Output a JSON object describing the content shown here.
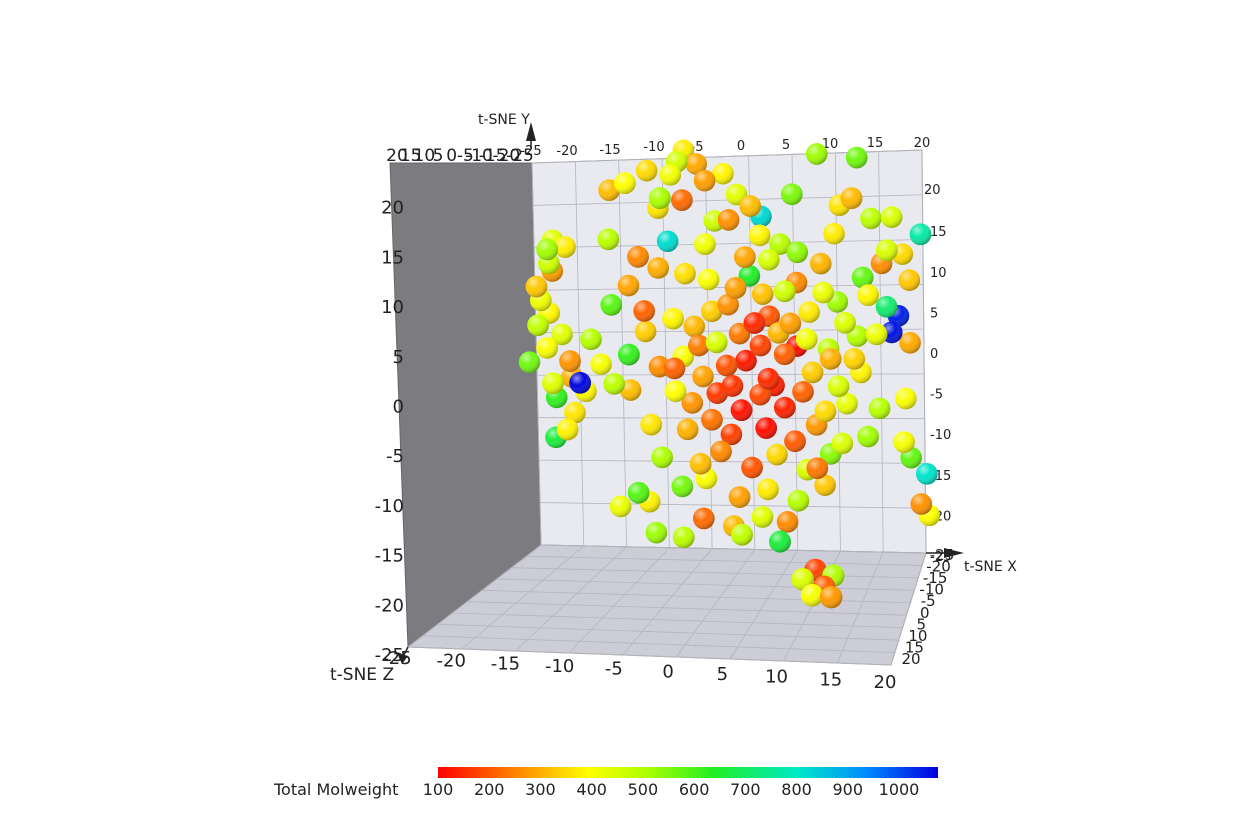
{
  "chart_data": {
    "type": "scatter3d",
    "title": "",
    "axes": {
      "x": {
        "label": "t-SNE X",
        "ticks": [
          "-25",
          "-20",
          "-15",
          "-10",
          "-5",
          "0",
          "5",
          "10",
          "15",
          "20"
        ],
        "range": [
          -25,
          20
        ]
      },
      "y": {
        "label": "t-SNE Y",
        "ticks": [
          "-25",
          "-20",
          "-15",
          "-10",
          "-5",
          "0",
          "5",
          "10",
          "15",
          "20"
        ],
        "range": [
          -25,
          20
        ]
      },
      "z": {
        "label": "t-SNE Z",
        "ticks": [
          "-25",
          "-20",
          "-15",
          "-10",
          "-5",
          "0",
          "5",
          "10",
          "15",
          "20"
        ],
        "range": [
          -25,
          20
        ]
      }
    },
    "colorbar": {
      "label": "Total Molweight",
      "ticks": [
        "100",
        "200",
        "300",
        "400",
        "500",
        "600",
        "700",
        "800",
        "900",
        "1000"
      ],
      "range": [
        100,
        1000
      ],
      "colormap": "jet-reversed (red = low, blue = high)"
    },
    "colors": {
      "back_wall": "#e9e9f0",
      "side_wall": "#7b7b80",
      "floor": "#cdcdd8",
      "grid": "#b5b5bf"
    },
    "points": [
      {
        "x": -8.5,
        "y": 20.4,
        "z": -1.6,
        "v": 351
      },
      {
        "x": -7.1,
        "y": 18.9,
        "z": -1.0,
        "v": 280
      },
      {
        "x": -9.6,
        "y": 19.3,
        "z": 0.4,
        "v": 427
      },
      {
        "x": -10.5,
        "y": 17.9,
        "z": 1.4,
        "v": 385
      },
      {
        "x": -13.0,
        "y": 18.2,
        "z": -0.3,
        "v": 332
      },
      {
        "x": -15.9,
        "y": 17.0,
        "z": 2.0,
        "v": 371
      },
      {
        "x": -17.6,
        "y": 16.1,
        "z": 1.1,
        "v": 299
      },
      {
        "x": -12.0,
        "y": 15.4,
        "z": 3.2,
        "v": 478
      },
      {
        "x": -11.4,
        "y": 13.7,
        "z": -2.1,
        "v": 341
      },
      {
        "x": -9.0,
        "y": 14.9,
        "z": 0.5,
        "v": 213
      },
      {
        "x": -4.0,
        "y": 17.8,
        "z": -0.8,
        "v": 359
      },
      {
        "x": -2.7,
        "y": 15.6,
        "z": 1.0,
        "v": 406
      },
      {
        "x": -1.3,
        "y": 14.4,
        "z": 2.3,
        "v": 299
      },
      {
        "x": -3.5,
        "y": 12.6,
        "z": 0.2,
        "v": 252
      },
      {
        "x": 0.6,
        "y": 12.8,
        "z": -1.8,
        "v": 769
      },
      {
        "x": 2.7,
        "y": 9.7,
        "z": -1.0,
        "v": 462
      },
      {
        "x": 11.4,
        "y": 19.8,
        "z": 0.7,
        "v": 529
      },
      {
        "x": 10.4,
        "y": 15.4,
        "z": 3.2,
        "v": 296
      },
      {
        "x": 9.3,
        "y": 14.4,
        "z": 1.3,
        "v": 341
      },
      {
        "x": 13.4,
        "y": 12.6,
        "z": -1.5,
        "v": 457
      },
      {
        "x": 15.6,
        "y": 12.9,
        "z": 0.0,
        "v": 420
      },
      {
        "x": 14.7,
        "y": 9.3,
        "z": 2.1,
        "v": 419
      },
      {
        "x": 16.9,
        "y": 8.6,
        "z": -0.4,
        "v": 330
      },
      {
        "x": 18.7,
        "y": 11.1,
        "z": 1.7,
        "v": 715
      },
      {
        "x": 17.6,
        "y": 5.7,
        "z": 0.4,
        "v": 312
      },
      {
        "x": -10.4,
        "y": 10.0,
        "z": -1.2,
        "v": 764
      },
      {
        "x": -17.6,
        "y": 10.4,
        "z": 0.5,
        "v": 456
      },
      {
        "x": -14.3,
        "y": 8.5,
        "z": 1.6,
        "v": 244
      },
      {
        "x": -11.6,
        "y": 7.0,
        "z": -0.6,
        "v": 283
      },
      {
        "x": -8.7,
        "y": 6.5,
        "z": 0.9,
        "v": 336
      },
      {
        "x": -5.6,
        "y": 5.6,
        "z": -1.3,
        "v": 378
      },
      {
        "x": -3.0,
        "y": 5.0,
        "z": 2.3,
        "v": 268
      },
      {
        "x": -1.1,
        "y": 6.2,
        "z": 0.4,
        "v": 601
      },
      {
        "x": 0.6,
        "y": 4.0,
        "z": -0.5,
        "v": 305
      },
      {
        "x": 2.9,
        "y": 4.5,
        "z": 1.2,
        "v": 431
      },
      {
        "x": 4.6,
        "y": 5.3,
        "z": -0.8,
        "v": 247
      },
      {
        "x": 7.5,
        "y": 4.3,
        "z": 0.6,
        "v": 395
      },
      {
        "x": 9.5,
        "y": 3.0,
        "z": -1.6,
        "v": 488
      },
      {
        "x": 12.6,
        "y": 4.1,
        "z": 1.6,
        "v": 361
      },
      {
        "x": 15.0,
        "y": 2.6,
        "z": 0.0,
        "v": 664
      },
      {
        "x": 16.5,
        "y": 1.5,
        "z": -0.7,
        "v": 969
      },
      {
        "x": 15.4,
        "y": -0.2,
        "z": 1.3,
        "v": 982
      },
      {
        "x": 17.7,
        "y": -1.5,
        "z": 0.3,
        "v": 280
      },
      {
        "x": -13.3,
        "y": 2.1,
        "z": -0.2,
        "v": 206
      },
      {
        "x": -10.2,
        "y": 1.4,
        "z": 1.6,
        "v": 360
      },
      {
        "x": -7.4,
        "y": 0.3,
        "z": -0.5,
        "v": 295
      },
      {
        "x": -5.0,
        "y": -1.4,
        "z": 0.9,
        "v": 420
      },
      {
        "x": -2.0,
        "y": -0.6,
        "z": -1.2,
        "v": 227
      },
      {
        "x": 0.2,
        "y": -1.8,
        "z": 0.4,
        "v": 171
      },
      {
        "x": 2.4,
        "y": -0.4,
        "z": -0.1,
        "v": 294
      },
      {
        "x": 5.5,
        "y": -1.0,
        "z": 1.1,
        "v": 388
      },
      {
        "x": 8.3,
        "y": -2.3,
        "z": -0.5,
        "v": 452
      },
      {
        "x": 11.1,
        "y": -3.3,
        "z": 0.8,
        "v": 323
      },
      {
        "x": -15.4,
        "y": -2.7,
        "z": 1.8,
        "v": 579
      },
      {
        "x": -11.5,
        "y": -4.3,
        "z": -0.3,
        "v": 249
      },
      {
        "x": -8.8,
        "y": -3.1,
        "z": 0.2,
        "v": 376
      },
      {
        "x": -6.3,
        "y": -5.5,
        "z": -1.0,
        "v": 271
      },
      {
        "x": -3.9,
        "y": -4.0,
        "z": 1.4,
        "v": 189
      },
      {
        "x": -1.4,
        "y": -3.6,
        "z": -0.2,
        "v": 128
      },
      {
        "x": 1.1,
        "y": -5.6,
        "z": 0.6,
        "v": 146
      },
      {
        "x": 3.3,
        "y": -3.0,
        "z": -1.4,
        "v": 202
      },
      {
        "x": 6.3,
        "y": -4.9,
        "z": 0.3,
        "v": 315
      },
      {
        "x": 9.2,
        "y": -6.4,
        "z": 1.2,
        "v": 419
      },
      {
        "x": 12.1,
        "y": -5.0,
        "z": -0.6,
        "v": 357
      },
      {
        "x": -21.0,
        "y": -6.0,
        "z": 1.2,
        "v": 994
      },
      {
        "x": -16.9,
        "y": -6.2,
        "z": 0.4,
        "v": 455
      },
      {
        "x": -14.7,
        "y": -7.1,
        "z": -1.4,
        "v": 300
      },
      {
        "x": -9.8,
        "y": -7.0,
        "z": 0.9,
        "v": 370
      },
      {
        "x": -7.6,
        "y": -8.5,
        "z": -0.7,
        "v": 258
      },
      {
        "x": -4.8,
        "y": -7.3,
        "z": 0.1,
        "v": 163
      },
      {
        "x": -2.2,
        "y": -9.1,
        "z": 1.6,
        "v": 121
      },
      {
        "x": 0.4,
        "y": -7.6,
        "z": -1.1,
        "v": 178
      },
      {
        "x": 3.0,
        "y": -8.9,
        "z": 0.7,
        "v": 137
      },
      {
        "x": 5.3,
        "y": -7.2,
        "z": -0.4,
        "v": 204
      },
      {
        "x": 7.7,
        "y": -9.3,
        "z": 1.0,
        "v": 331
      },
      {
        "x": 10.5,
        "y": -8.6,
        "z": -0.8,
        "v": 401
      },
      {
        "x": 14.1,
        "y": -9.0,
        "z": 0.5,
        "v": 462
      },
      {
        "x": 17.5,
        "y": -8.1,
        "z": -1.6,
        "v": 375
      },
      {
        "x": -12.7,
        "y": -10.8,
        "z": 1.2,
        "v": 344
      },
      {
        "x": -8.2,
        "y": -11.5,
        "z": -0.3,
        "v": 287
      },
      {
        "x": -5.5,
        "y": -10.3,
        "z": 0.6,
        "v": 222
      },
      {
        "x": -2.9,
        "y": -12.2,
        "z": -1.5,
        "v": 168
      },
      {
        "x": 0.9,
        "y": -11.3,
        "z": 0.2,
        "v": 116
      },
      {
        "x": 4.1,
        "y": -12.7,
        "z": 1.3,
        "v": 196
      },
      {
        "x": 6.9,
        "y": -11.0,
        "z": -0.5,
        "v": 262
      },
      {
        "x": 9.7,
        "y": -13.0,
        "z": 0.8,
        "v": 420
      },
      {
        "x": 13.0,
        "y": -12.4,
        "z": -1.0,
        "v": 486
      },
      {
        "x": 17.0,
        "y": -12.9,
        "z": 0.3,
        "v": 380
      },
      {
        "x": -11.2,
        "y": -14.7,
        "z": -0.2,
        "v": 474
      },
      {
        "x": -6.9,
        "y": -15.3,
        "z": 1.1,
        "v": 301
      },
      {
        "x": -4.2,
        "y": -14.1,
        "z": -0.9,
        "v": 245
      },
      {
        "x": -0.8,
        "y": -15.8,
        "z": 0.5,
        "v": 190
      },
      {
        "x": 2.4,
        "y": -14.5,
        "z": -1.3,
        "v": 328
      },
      {
        "x": 5.6,
        "y": -16.0,
        "z": 0.9,
        "v": 418
      },
      {
        "x": 8.5,
        "y": -14.3,
        "z": -0.2,
        "v": 507
      },
      {
        "x": 19.6,
        "y": -16.5,
        "z": 0.7,
        "v": 754
      },
      {
        "x": 18.0,
        "y": -14.8,
        "z": -0.8,
        "v": 541
      },
      {
        "x": -8.9,
        "y": -18.0,
        "z": 0.2,
        "v": 525
      },
      {
        "x": -5.9,
        "y": -17.2,
        "z": -1.0,
        "v": 376
      },
      {
        "x": -2.4,
        "y": -19.1,
        "z": 1.4,
        "v": 269
      },
      {
        "x": 1.2,
        "y": -18.4,
        "z": -0.4,
        "v": 349
      },
      {
        "x": 4.6,
        "y": -19.6,
        "z": 0.6,
        "v": 466
      },
      {
        "x": 8.0,
        "y": -18.0,
        "z": -1.2,
        "v": 312
      },
      {
        "x": 19.0,
        "y": -20.0,
        "z": 0.4,
        "v": 253
      },
      {
        "x": 20.1,
        "y": -21.4,
        "z": -0.6,
        "v": 372
      },
      {
        "x": -6.5,
        "y": -21.6,
        "z": 0.9,
        "v": 212
      },
      {
        "x": -2.8,
        "y": -22.6,
        "z": -0.3,
        "v": 297
      },
      {
        "x": 0.3,
        "y": -21.4,
        "z": 1.2,
        "v": 411
      },
      {
        "x": 3.6,
        "y": -22.2,
        "z": -1.1,
        "v": 246
      },
      {
        "x": -8.8,
        "y": -23.8,
        "z": 0.6,
        "v": 456
      },
      {
        "x": -11.8,
        "y": -23.4,
        "z": -0.7,
        "v": 491
      },
      {
        "x": -16.1,
        "y": -20.3,
        "z": 0.1,
        "v": 396
      },
      {
        "x": -14.2,
        "y": -18.6,
        "z": 1.4,
        "v": 551
      },
      {
        "x": -12.5,
        "y": -19.9,
        "z": -1.2,
        "v": 355
      },
      {
        "x": 2.0,
        "y": -24.0,
        "z": 3.5,
        "v": 620
      },
      {
        "x": -2.6,
        "y": -23.1,
        "z": 4.5,
        "v": 449
      },
      {
        "x": -25.0,
        "y": 9.4,
        "z": 2.1,
        "v": 484
      },
      {
        "x": -24.0,
        "y": 10.2,
        "z": -0.3,
        "v": 404
      },
      {
        "x": -22.8,
        "y": 9.6,
        "z": 1.4,
        "v": 351
      },
      {
        "x": -24.5,
        "y": 7.6,
        "z": 0.2,
        "v": 433
      },
      {
        "x": -23.9,
        "y": 6.6,
        "z": -1.1,
        "v": 265
      },
      {
        "x": -26.2,
        "y": 5.1,
        "z": 1.8,
        "v": 311
      },
      {
        "x": -25.5,
        "y": 3.4,
        "z": 0.6,
        "v": 391
      },
      {
        "x": -24.3,
        "y": 1.8,
        "z": -0.8,
        "v": 362
      },
      {
        "x": -25.9,
        "y": 0.6,
        "z": 1.1,
        "v": 447
      },
      {
        "x": -22.9,
        "y": -0.6,
        "z": -0.3,
        "v": 412
      },
      {
        "x": -24.7,
        "y": -2.1,
        "z": 0.2,
        "v": 376
      },
      {
        "x": -22.2,
        "y": -3.5,
        "z": 1.3,
        "v": 258
      },
      {
        "x": -26.5,
        "y": -3.9,
        "z": -1.5,
        "v": 528
      },
      {
        "x": -24.1,
        "y": -6.1,
        "z": 0.7,
        "v": 412
      },
      {
        "x": -21.7,
        "y": -5.5,
        "z": -0.4,
        "v": 289
      },
      {
        "x": -20.3,
        "y": -7.0,
        "z": 1.0,
        "v": 363
      },
      {
        "x": -23.4,
        "y": -7.9,
        "z": -1.0,
        "v": 581
      },
      {
        "x": -21.5,
        "y": -9.5,
        "z": 0.5,
        "v": 342
      },
      {
        "x": -23.6,
        "y": -12.4,
        "z": -0.2,
        "v": 620
      },
      {
        "x": -22.4,
        "y": -11.4,
        "z": 0.8,
        "v": 357
      },
      {
        "x": 5.0,
        "y": -26.5,
        "z": 10.8,
        "v": 172
      },
      {
        "x": 3.4,
        "y": -27.5,
        "z": 11.5,
        "v": 416
      },
      {
        "x": 5.8,
        "y": -28.3,
        "z": 12.2,
        "v": 201
      },
      {
        "x": 7.0,
        "y": -27.1,
        "z": 11.4,
        "v": 472
      },
      {
        "x": 4.3,
        "y": -29.2,
        "z": 12.8,
        "v": 380
      },
      {
        "x": 6.5,
        "y": -29.4,
        "z": 13.0,
        "v": 262
      },
      {
        "x": -5.3,
        "y": 2.0,
        "z": -0.8,
        "v": 318
      },
      {
        "x": -3.6,
        "y": 2.9,
        "z": 0.5,
        "v": 254
      },
      {
        "x": 1.3,
        "y": 1.5,
        "z": -0.2,
        "v": 190
      },
      {
        "x": 3.6,
        "y": 0.8,
        "z": 1.0,
        "v": 267
      },
      {
        "x": 6.1,
        "y": 1.9,
        "z": -0.9,
        "v": 348
      },
      {
        "x": 10.1,
        "y": 0.8,
        "z": 0.3,
        "v": 415
      },
      {
        "x": -1.7,
        "y": 8.4,
        "z": 0.9,
        "v": 276
      },
      {
        "x": 1.4,
        "y": 7.9,
        "z": -1.0,
        "v": 422
      },
      {
        "x": 4.5,
        "y": 8.9,
        "z": 0.4,
        "v": 503
      },
      {
        "x": 7.4,
        "y": 7.5,
        "z": -0.6,
        "v": 292
      },
      {
        "x": -6.4,
        "y": 9.9,
        "z": 1.1,
        "v": 389
      },
      {
        "x": -19.6,
        "y": -1.1,
        "z": 0.3,
        "v": 465
      },
      {
        "x": -18.2,
        "y": -4.1,
        "z": -1.1,
        "v": 381
      },
      {
        "x": -17.3,
        "y": 2.9,
        "z": 0.8,
        "v": 547
      },
      {
        "x": -15.1,
        "y": 5.0,
        "z": -0.4,
        "v": 275
      },
      {
        "x": 13.6,
        "y": -0.4,
        "z": 1.5,
        "v": 397
      },
      {
        "x": 11.8,
        "y": -0.9,
        "z": -1.3,
        "v": 466
      },
      {
        "x": 14.4,
        "y": 7.6,
        "z": 0.1,
        "v": 251
      },
      {
        "x": 12.0,
        "y": 6.1,
        "z": 1.3,
        "v": 538
      },
      {
        "x": 6.7,
        "y": -15.8,
        "z": 1.3,
        "v": 226
      },
      {
        "x": -9.9,
        "y": -4.4,
        "z": 0.7,
        "v": 205
      },
      {
        "x": -0.7,
        "y": 0.9,
        "z": 1.6,
        "v": 143
      },
      {
        "x": 4.8,
        "y": -2.1,
        "z": -1.8,
        "v": 112
      },
      {
        "x": -3.3,
        "y": -6.3,
        "z": 1.8,
        "v": 155
      },
      {
        "x": 2.1,
        "y": -6.6,
        "z": -1.6,
        "v": 131
      },
      {
        "x": -7.0,
        "y": -1.8,
        "z": 0.4,
        "v": 231
      },
      {
        "x": 8.2,
        "y": -3.2,
        "z": 1.7,
        "v": 286
      },
      {
        "x": -12.9,
        "y": -0.4,
        "z": -1.7,
        "v": 318
      },
      {
        "x": 0.0,
        "y": 10.9,
        "z": 1.0,
        "v": 360
      },
      {
        "x": -4.9,
        "y": 12.3,
        "z": -1.5,
        "v": 433
      },
      {
        "x": 9.0,
        "y": 10.9,
        "z": -0.9,
        "v": 350
      },
      {
        "x": 3.8,
        "y": 15.6,
        "z": 0.8,
        "v": 518
      },
      {
        "x": -6.3,
        "y": 17.1,
        "z": 0.2,
        "v": 268
      },
      {
        "x": 6.9,
        "y": 20.1,
        "z": -0.4,
        "v": 489
      }
    ]
  }
}
